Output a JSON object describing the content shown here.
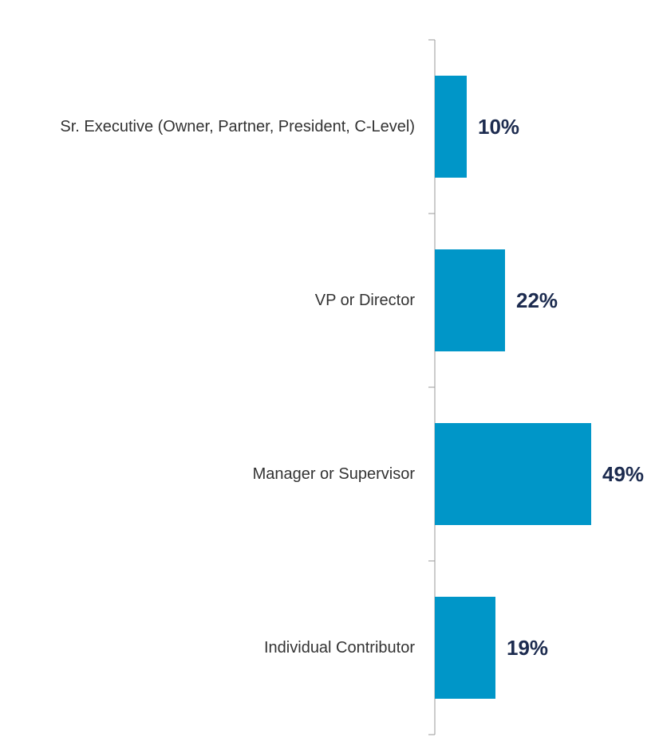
{
  "chart_data": {
    "type": "bar",
    "orientation": "horizontal",
    "categories": [
      "Sr. Executive (Owner, Partner, President, C-Level)",
      "VP or Director",
      "Manager or Supervisor",
      "Individual Contributor"
    ],
    "values": [
      10,
      22,
      49,
      19
    ],
    "value_labels": [
      "10%",
      "22%",
      "49%",
      "19%"
    ],
    "color": "#0096c8"
  }
}
